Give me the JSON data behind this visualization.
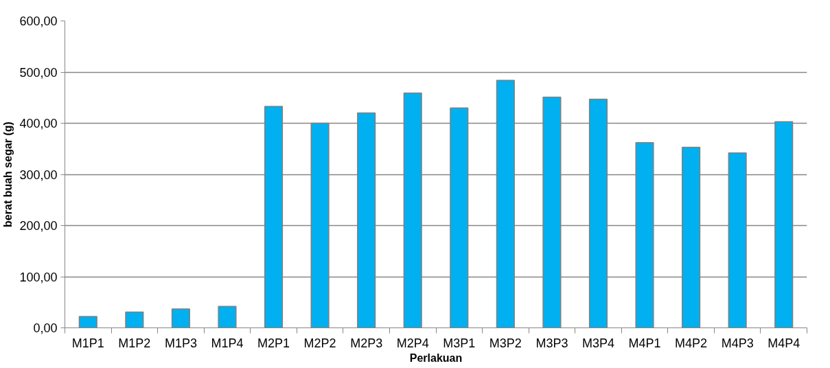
{
  "chart_data": {
    "type": "bar",
    "xlabel": "Perlakuan",
    "ylabel": "berat buah segar (g)",
    "categories": [
      "M1P1",
      "M1P2",
      "M1P3",
      "M1P4",
      "M2P1",
      "M2P2",
      "M2P3",
      "M2P4",
      "M3P1",
      "M3P2",
      "M3P3",
      "M3P4",
      "M4P1",
      "M4P2",
      "M4P3",
      "M4P4"
    ],
    "values": [
      22,
      31,
      37,
      42,
      433,
      400,
      420,
      459,
      430,
      484,
      451,
      447,
      362,
      353,
      342,
      403
    ],
    "color": "#00b0f0",
    "ylim": [
      0,
      600
    ],
    "yticks": [
      {
        "value": 0,
        "label": "0,00"
      },
      {
        "value": 100,
        "label": "100,00"
      },
      {
        "value": 200,
        "label": "200,00"
      },
      {
        "value": 300,
        "label": "300,00"
      },
      {
        "value": 400,
        "label": "400,00"
      },
      {
        "value": 500,
        "label": "500,00"
      },
      {
        "value": 600,
        "label": "600,00"
      }
    ],
    "grid": "y"
  }
}
